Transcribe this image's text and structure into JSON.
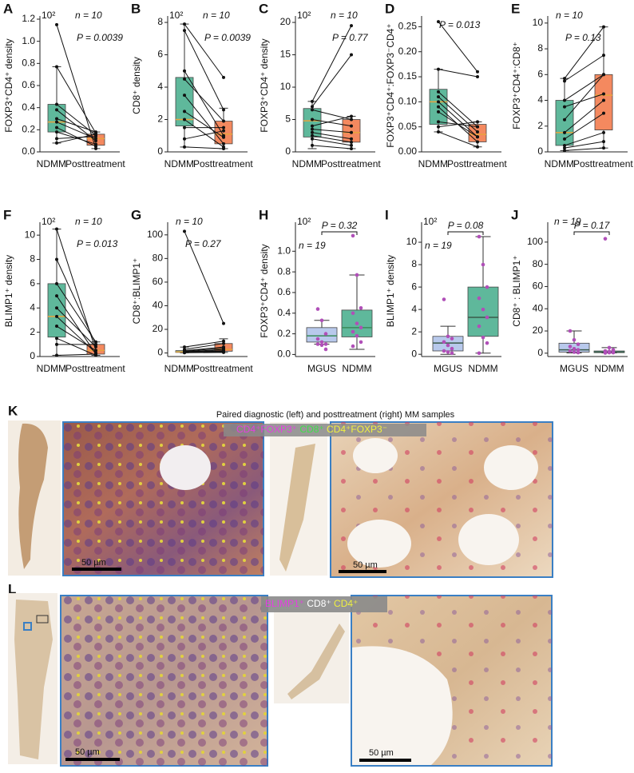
{
  "chart_data": [
    {
      "type": "paired",
      "panel": "A",
      "ylabel": "FOXP3⁺CD4⁺ density",
      "exponent": "10²",
      "n_label": "n = 10",
      "p_label": "P = 0.0039",
      "categories": [
        "NDMM",
        "Posttreatment"
      ],
      "colors": [
        "#5fb89b",
        "#f4895f"
      ],
      "median_color": "#e8a33d",
      "ylim": [
        0,
        1.2
      ],
      "yticks": [
        {
          "value": 0,
          "label": "0.0"
        },
        0.2,
        0.4,
        0.6,
        0.8,
        {
          "value": 1,
          "label": "1.0"
        },
        1.2
      ],
      "pairs": [
        [
          1.15,
          0.03
        ],
        [
          0.77,
          0.17
        ],
        [
          0.43,
          0.15
        ],
        [
          0.38,
          0.1
        ],
        [
          0.3,
          0.18
        ],
        [
          0.27,
          0.12
        ],
        [
          0.22,
          0.05
        ],
        [
          0.18,
          0.07
        ],
        [
          0.12,
          0.14
        ],
        [
          0.08,
          0.16
        ]
      ],
      "boxes": [
        {
          "q1": 0.18,
          "median": 0.27,
          "q3": 0.43,
          "low": 0.08,
          "high": 0.77
        },
        {
          "q1": 0.06,
          "median": 0.12,
          "q3": 0.16,
          "low": 0.03,
          "high": 0.18
        }
      ]
    },
    {
      "type": "paired",
      "panel": "B",
      "ylabel": "CD8⁺ density",
      "exponent": "10²",
      "n_label": "n = 10",
      "p_label": "P = 0.0039",
      "categories": [
        "NDMM",
        "Posttreatment"
      ],
      "colors": [
        "#5fb89b",
        "#f4895f"
      ],
      "median_color": "#e8a33d",
      "ylim": [
        0,
        8.2
      ],
      "yticks": [
        0,
        2,
        4,
        6,
        8
      ],
      "pairs": [
        [
          7.9,
          4.6
        ],
        [
          7.5,
          2.6
        ],
        [
          5.0,
          1.0
        ],
        [
          4.5,
          1.9
        ],
        [
          3.5,
          0.5
        ],
        [
          2.5,
          0.9
        ],
        [
          2.0,
          0.3
        ],
        [
          1.5,
          1.5
        ],
        [
          0.8,
          1.3
        ],
        [
          0.3,
          0.2
        ]
      ],
      "boxes": [
        {
          "q1": 1.6,
          "median": 2.0,
          "q3": 4.6,
          "low": 0.3,
          "high": 7.9
        },
        {
          "q1": 0.5,
          "median": 1.1,
          "q3": 1.9,
          "low": 0.2,
          "high": 2.7
        }
      ]
    },
    {
      "type": "paired",
      "panel": "C",
      "ylabel": "FOXP3⁺CD4⁺ density",
      "exponent": "10²",
      "n_label": "n = 10",
      "p_label": "P = 0.77",
      "categories": [
        "NDMM",
        "Posttreatment"
      ],
      "colors": [
        "#5fb89b",
        "#f4895f"
      ],
      "median_color": "#e8a33d",
      "ylim": [
        0,
        20.5
      ],
      "yticks": [
        0,
        5,
        10,
        15,
        20
      ],
      "pairs": [
        [
          7.8,
          19.5
        ],
        [
          7.0,
          15.0
        ],
        [
          6.5,
          5.0
        ],
        [
          5.0,
          4.0
        ],
        [
          4.0,
          5.5
        ],
        [
          3.5,
          3.0
        ],
        [
          3.0,
          2.0
        ],
        [
          2.5,
          1.5
        ],
        [
          2.0,
          1.0
        ],
        [
          1.0,
          0.5
        ]
      ],
      "boxes": [
        {
          "q1": 2.3,
          "median": 4.8,
          "q3": 6.7,
          "low": 0.5,
          "high": 7.8
        },
        {
          "q1": 1.5,
          "median": 3.0,
          "q3": 5.0,
          "low": 0.5,
          "high": 5.5
        }
      ]
    },
    {
      "type": "paired",
      "panel": "D",
      "ylabel": "FOXP3⁺CD4⁺:FOXP3⁻CD4⁺",
      "n_label": "",
      "p_label": "P = 0.013",
      "categories": [
        "NDMM",
        "Posttreatment"
      ],
      "colors": [
        "#5fb89b",
        "#f4895f"
      ],
      "median_color": "#e8a33d",
      "ylim": [
        0,
        0.265
      ],
      "yticks": [
        {
          "value": 0,
          "label": "0.00"
        },
        0.05,
        {
          "value": 0.1,
          "label": "0.10"
        },
        0.15,
        {
          "value": 0.2,
          "label": "0.20"
        },
        0.25
      ],
      "pairs": [
        [
          0.26,
          0.16
        ],
        [
          0.165,
          0.15
        ],
        [
          0.12,
          0.05
        ],
        [
          0.11,
          0.04
        ],
        [
          0.1,
          0.03
        ],
        [
          0.09,
          0.02
        ],
        [
          0.08,
          0.03
        ],
        [
          0.06,
          0.05
        ],
        [
          0.05,
          0.06
        ],
        [
          0.04,
          0.01
        ]
      ],
      "boxes": [
        {
          "q1": 0.055,
          "median": 0.1,
          "q3": 0.125,
          "low": 0.04,
          "high": 0.165
        },
        {
          "q1": 0.02,
          "median": 0.035,
          "q3": 0.055,
          "low": 0.01,
          "high": 0.06
        }
      ]
    },
    {
      "type": "paired",
      "panel": "E",
      "ylabel": "FOXP3⁺CD4⁺:CD8⁺",
      "n_label": "n = 10",
      "p_label": "P = 0.13",
      "categories": [
        "NDMM",
        "Posttreatment"
      ],
      "colors": [
        "#5fb89b",
        "#f4895f"
      ],
      "median_color": "#e8a33d",
      "ylim": [
        0,
        10.3
      ],
      "yticks": [
        0,
        2,
        4,
        6,
        8,
        10
      ],
      "pairs": [
        [
          5.7,
          9.7
        ],
        [
          5.5,
          7.5
        ],
        [
          4.0,
          6.0
        ],
        [
          3.5,
          4.5
        ],
        [
          2.5,
          6.0
        ],
        [
          1.5,
          4.0
        ],
        [
          1.0,
          3.0
        ],
        [
          0.5,
          1.5
        ],
        [
          0.3,
          0.8
        ],
        [
          0.1,
          0.3
        ]
      ],
      "boxes": [
        {
          "q1": 0.5,
          "median": 1.5,
          "q3": 4.0,
          "low": 0.1,
          "high": 5.7
        },
        {
          "q1": 1.7,
          "median": 4.4,
          "q3": 6.0,
          "low": 0.3,
          "high": 9.7
        }
      ]
    },
    {
      "type": "paired",
      "panel": "F",
      "ylabel": "BLIMP1⁺ density",
      "exponent": "10²",
      "n_label": "n = 10",
      "p_label": "P = 0.013",
      "categories": [
        "NDMM",
        "Posttreatment"
      ],
      "colors": [
        "#5fb89b",
        "#f4895f"
      ],
      "median_color": "#e8a33d",
      "ylim": [
        0,
        10.8
      ],
      "yticks": [
        0,
        2,
        4,
        6,
        8,
        10
      ],
      "pairs": [
        [
          10.5,
          0.5
        ],
        [
          8.0,
          1.0
        ],
        [
          6.0,
          1.2
        ],
        [
          5.0,
          0.2
        ],
        [
          4.0,
          0.8
        ],
        [
          3.3,
          0.3
        ],
        [
          2.5,
          0.5
        ],
        [
          1.5,
          0.1
        ],
        [
          1.0,
          1.0
        ],
        [
          0.1,
          0.2
        ]
      ],
      "boxes": [
        {
          "q1": 1.6,
          "median": 3.3,
          "q3": 6.0,
          "low": 0.1,
          "high": 10.5
        },
        {
          "q1": 0.2,
          "median": 0.5,
          "q3": 1.0,
          "low": 0.1,
          "high": 1.2
        }
      ]
    },
    {
      "type": "paired",
      "panel": "G",
      "ylabel": "CD8⁺:BLIMP1⁺",
      "n_label": "n = 10",
      "p_label": "P = 0.27",
      "categories": [
        "NDMM",
        "Posttreatment"
      ],
      "colors": [
        "#5fb89b",
        "#f4895f"
      ],
      "median_color": "#e8a33d",
      "ylim": [
        -3,
        108
      ],
      "yticks": [
        0,
        20,
        40,
        60,
        80,
        100
      ],
      "pairs": [
        [
          103,
          25
        ],
        [
          5,
          10
        ],
        [
          3,
          8
        ],
        [
          2,
          5
        ],
        [
          1.5,
          4
        ],
        [
          1,
          3
        ],
        [
          1,
          2
        ],
        [
          0.5,
          1.5
        ],
        [
          0.5,
          1
        ],
        [
          0.2,
          0.5
        ]
      ],
      "boxes": [
        {
          "q1": 0.5,
          "median": 1,
          "q3": 2,
          "low": 0.2,
          "high": 5
        },
        {
          "q1": 1.5,
          "median": 3,
          "q3": 8,
          "low": 0.5,
          "high": 12
        }
      ]
    },
    {
      "type": "grouped",
      "panel": "H",
      "ylabel": "FOXP3⁺CD4⁺ density",
      "exponent": "10²",
      "n_label": "n = 19",
      "p_label": "P = 0.32",
      "categories": [
        "MGUS",
        "NDMM"
      ],
      "colors": [
        "#b8c9ec",
        "#5fb89b"
      ],
      "median_color": "#3a8a5a",
      "point_color": "#b04fb8",
      "ylim": [
        -0.02,
        1.25
      ],
      "yticks": [
        {
          "value": 0,
          "label": "0.0"
        },
        0.2,
        0.4,
        0.6,
        0.8,
        {
          "value": 1,
          "label": "1.0"
        }
      ],
      "points": [
        [
          0.44,
          0.33,
          0.2,
          0.15,
          0.12,
          0.1,
          0.1,
          0.09,
          0.05
        ],
        [
          1.15,
          0.77,
          0.45,
          0.4,
          0.3,
          0.26,
          0.22,
          0.18,
          0.12,
          0.08
        ]
      ],
      "boxes": [
        {
          "q1": 0.12,
          "median": 0.18,
          "q3": 0.26,
          "low": 0.1,
          "high": 0.33
        },
        {
          "q1": 0.17,
          "median": 0.26,
          "q3": 0.43,
          "low": 0.05,
          "high": 0.77
        }
      ]
    },
    {
      "type": "grouped",
      "panel": "I",
      "ylabel": "BLIMP1⁺ density",
      "exponent": "10²",
      "n_label": "n = 19",
      "p_label": "P = 0.08",
      "categories": [
        "MGUS",
        "NDMM"
      ],
      "colors": [
        "#b8c9ec",
        "#5fb89b"
      ],
      "median_color": "#3a5a4a",
      "point_color": "#b04fb8",
      "ylim": [
        -0.2,
        11.5
      ],
      "yticks": [
        0,
        2,
        4,
        6,
        8,
        10
      ],
      "points": [
        [
          4.9,
          1.6,
          1.4,
          1.1,
          0.8,
          0.5,
          0.3,
          0.2,
          0.1
        ],
        [
          10.5,
          8.0,
          6.0,
          5.0,
          4.0,
          3.3,
          2.5,
          1.5,
          1.0,
          0.1
        ]
      ],
      "boxes": [
        {
          "q1": 0.3,
          "median": 1.0,
          "q3": 1.6,
          "low": 0.0,
          "high": 2.5
        },
        {
          "q1": 1.6,
          "median": 3.3,
          "q3": 6.0,
          "low": 0.1,
          "high": 10.5
        }
      ]
    },
    {
      "type": "grouped",
      "panel": "J",
      "ylabel": "CD8⁺ : BLIMP1⁺",
      "n_label": "n = 19",
      "p_label": "P = 0.17",
      "categories": [
        "MGUS",
        "NDMM"
      ],
      "colors": [
        "#b8c9ec",
        "#5fb89b"
      ],
      "median_color": "#3a5a4a",
      "point_color": "#b04fb8",
      "ylim": [
        -3,
        115
      ],
      "yticks": [
        0,
        20,
        40,
        60,
        80,
        100
      ],
      "points": [
        [
          20,
          12,
          8,
          6,
          4,
          3,
          2,
          1,
          0.5
        ],
        [
          103,
          5,
          3,
          2,
          1.5,
          1,
          1,
          0.5,
          0.5,
          0.2
        ]
      ],
      "boxes": [
        {
          "q1": 1,
          "median": 3,
          "q3": 9,
          "low": 0.2,
          "high": 20
        },
        {
          "q1": 0.5,
          "median": 1,
          "q3": 2,
          "low": 0.2,
          "high": 5
        }
      ]
    }
  ],
  "image_panels": [
    {
      "panel": "K",
      "title": "Paired diagnostic (left) and posttreatment (right) MM samples",
      "legend": [
        {
          "text": "CD4⁺FOXP3⁺",
          "color": "#e43fe0"
        },
        {
          "text": " CD8⁺ ",
          "color": "#3fe04a"
        },
        {
          "text": "CD4⁺FOXP3⁻",
          "color": "#f0f040"
        }
      ],
      "scale_bars": [
        "50 µm",
        "50 µm"
      ]
    },
    {
      "panel": "L",
      "legend": [
        {
          "text": "BLIMP1⁺ ",
          "color": "#e43fe0"
        },
        {
          "text": "CD8⁺ ",
          "color": "#ffffff"
        },
        {
          "text": "CD4⁺",
          "color": "#f0f040"
        }
      ],
      "scale_bars": [
        "50 µm",
        "50 µm"
      ]
    }
  ]
}
